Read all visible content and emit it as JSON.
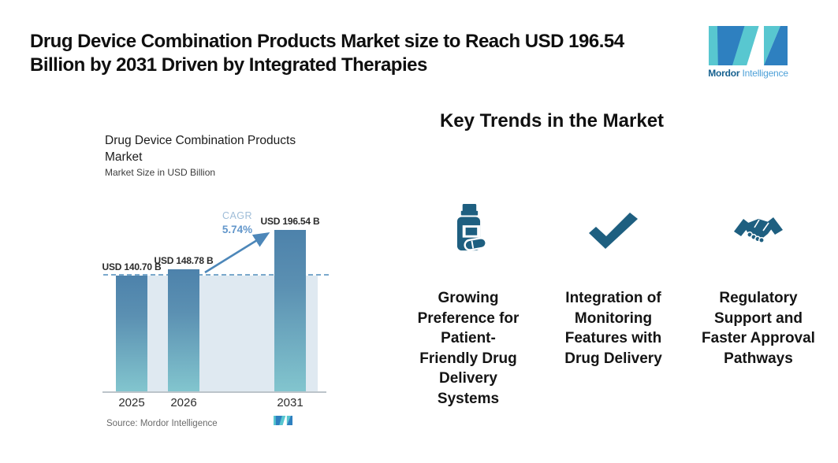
{
  "header": {
    "title": "Drug Device Combination Products Market size to Reach USD 196.54\nBillion by 2031 Driven by Integrated Therapies",
    "brand": {
      "name_bold": "Mordor",
      "name_regular": "Intelligence"
    }
  },
  "chart_data": {
    "type": "bar",
    "title": "Drug Device Combination Products\nMarket",
    "subtitle": "Market Size in USD Billion",
    "categories": [
      "2025",
      "2026",
      "2031"
    ],
    "values": [
      140.7,
      148.78,
      196.54
    ],
    "value_labels": [
      "USD 140.70 B",
      "USD 148.78 B",
      "USD 196.54 B"
    ],
    "unit": "USD Billion",
    "ylim": [
      0,
      210
    ],
    "grid": "off",
    "legend": "none",
    "annotation": {
      "label": "CAGR",
      "value": "5.74%"
    },
    "source": "Source: Mordor Intelligence"
  },
  "key_trends": {
    "heading": "Key Trends in the Market",
    "items": [
      {
        "icon": "pill-bottle-icon",
        "label": "Growing\nPreference for\nPatient-\nFriendly Drug\nDelivery\nSystems"
      },
      {
        "icon": "checkmark-icon",
        "label": "Integration of\nMonitoring\nFeatures with\nDrug Delivery"
      },
      {
        "icon": "handshake-icon",
        "label": "Regulatory\nSupport and\nFaster Approval\nPathways"
      }
    ]
  },
  "colors": {
    "icon_blue": "#1e5f80",
    "bar_gradient_top": "#4d82ab",
    "bar_gradient_bottom": "#82c5ce",
    "plot_background": "#dfe9f1",
    "dashed_line": "#7aa9cc",
    "arrow": "#4d87b9",
    "cagr_label_color": "#9fbdd8",
    "cagr_value_color": "#6397cb",
    "logo_teal": "#58c7d0",
    "logo_blue": "#2e80c0"
  }
}
